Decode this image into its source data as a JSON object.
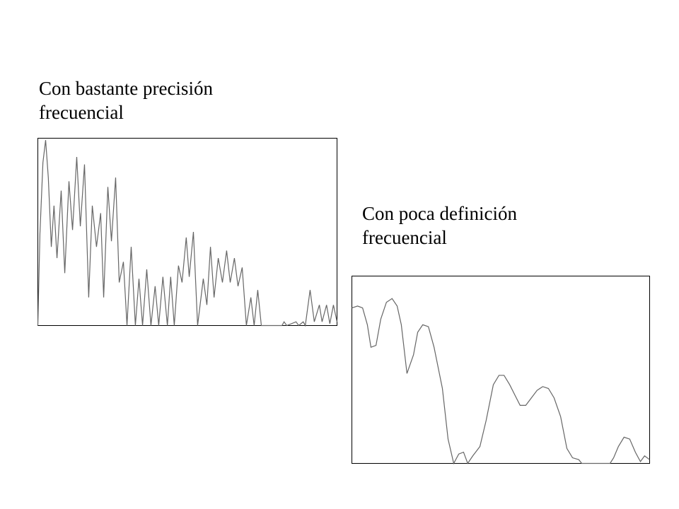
{
  "chart_data": [
    {
      "type": "line",
      "title": "Con bastante precisión frecuencial",
      "color": "#666666",
      "xlim": [
        0,
        100
      ],
      "ylim": [
        0,
        100
      ],
      "x": [
        0,
        0.7,
        1.7,
        2.6,
        3.5,
        4.5,
        5.4,
        6.4,
        7.8,
        9,
        10.4,
        11.6,
        13,
        14.2,
        15.6,
        17,
        18.2,
        19.6,
        21,
        22,
        23.4,
        24.6,
        26,
        27.2,
        28.6,
        29.8,
        31.2,
        32.6,
        33.8,
        35,
        36.4,
        37.8,
        39.2,
        40.4,
        41.8,
        43.3,
        44.4,
        45.6,
        47,
        48.2,
        49.6,
        50.6,
        52,
        53.4,
        55.3,
        56.5,
        57.7,
        58.9,
        60.3,
        61.7,
        63.1,
        64.3,
        65.7,
        66.9,
        68.3,
        69.7,
        71.2,
        72.3,
        73.5,
        74.7,
        81.6,
        82.3,
        83.2,
        86.3,
        87.2,
        88.7,
        89.4,
        91,
        92.4,
        94.1,
        95,
        96.5,
        97.6,
        98.8,
        100
      ],
      "values": [
        0,
        49,
        87,
        99,
        79,
        42,
        64,
        36,
        72,
        28,
        77,
        51,
        90,
        53,
        86,
        15,
        64,
        42,
        60,
        15,
        74,
        45,
        79,
        23,
        34,
        0,
        42,
        0,
        25,
        0,
        30,
        0,
        21,
        0,
        26,
        0,
        26,
        0,
        32,
        23,
        47,
        26,
        50,
        0,
        25,
        11,
        42,
        15,
        36,
        23,
        40,
        23,
        36,
        21,
        31,
        0,
        15,
        0,
        19,
        0,
        0,
        2,
        0,
        2,
        0,
        2,
        0,
        19,
        2,
        11,
        2,
        11,
        1,
        11,
        2
      ]
    },
    {
      "type": "line",
      "title": "Con poca definición frecuencial",
      "color": "#666666",
      "xlim": [
        0,
        100
      ],
      "ylim": [
        0,
        100
      ],
      "x": [
        0,
        1.9,
        3.6,
        5.2,
        6.4,
        8.1,
        9.7,
        11.6,
        13.5,
        15.2,
        16.6,
        18.5,
        20.7,
        22.1,
        23.8,
        25.7,
        27.6,
        30.4,
        32.3,
        34.2,
        35.9,
        37.5,
        38.9,
        40.6,
        43,
        45.1,
        47.5,
        49.4,
        51.1,
        53,
        54.9,
        56.5,
        58.4,
        60.3,
        62.2,
        64.1,
        66,
        67.9,
        70.1,
        72.2,
        74.1,
        76.2,
        77.2,
        86.7,
        87.9,
        89.5,
        91.4,
        93.3,
        95.2,
        96.9,
        98.3,
        100
      ],
      "values": [
        83,
        84,
        83,
        74,
        62,
        63,
        77,
        86,
        88,
        84,
        74,
        48,
        58,
        70,
        74,
        73,
        62,
        40,
        13,
        0,
        5,
        6,
        0,
        4,
        9,
        23,
        42,
        47,
        47,
        42,
        36,
        31,
        31,
        35,
        39,
        41,
        40,
        35,
        25,
        8,
        3,
        2,
        0,
        0,
        3,
        9,
        14,
        13,
        6,
        1,
        4,
        2
      ]
    }
  ]
}
